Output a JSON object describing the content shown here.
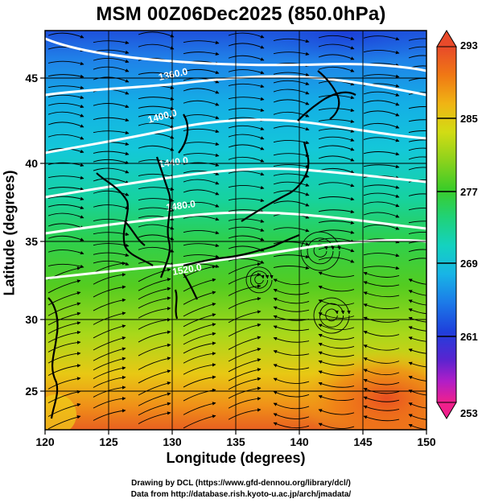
{
  "title": "MSM 00Z06Dec2025 (850.0hPa)",
  "xlabel": "Longitude (degrees)",
  "ylabel": "Latitude  (degrees)",
  "credits": {
    "line1": "Drawing by DCL (https://www.gfd-dennou.org/library/dcl/)",
    "line2": "Data from http://database.rish.kyoto-u.ac.jp/arch/jmadata/"
  },
  "x_ticks": [
    "120",
    "125",
    "130",
    "135",
    "140",
    "145",
    "150"
  ],
  "y_ticks": [
    "45",
    "40",
    "35",
    "30",
    "25"
  ],
  "colorbar": {
    "ticks": [
      "293",
      "285",
      "277",
      "269",
      "261",
      "253"
    ],
    "palette": [
      "#f0208c",
      "#b01ec8",
      "#5a24d0",
      "#1e40dc",
      "#1c7ae8",
      "#18b4e6",
      "#14d2c0",
      "#20d278",
      "#3ccc28",
      "#8cd21c",
      "#d2dc14",
      "#f0b414",
      "#f07814",
      "#e84a2a"
    ]
  },
  "contours": {
    "color": "#ffffff",
    "labels": [
      "1360.0",
      "1400.0",
      "1440.0",
      "1480.0",
      "1520.0"
    ]
  },
  "map_extent": {
    "lon": [
      120,
      150
    ],
    "lat": [
      22.5,
      48
    ]
  }
}
